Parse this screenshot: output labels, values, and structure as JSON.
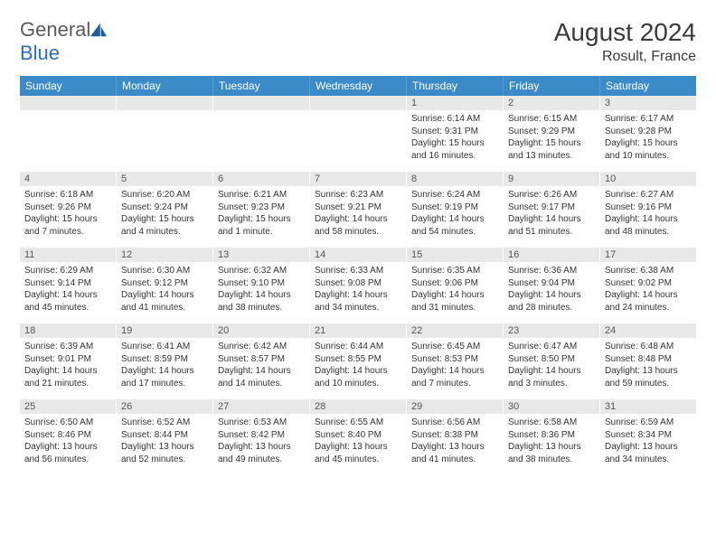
{
  "brand": {
    "name_a": "General",
    "name_b": "Blue",
    "logo_fill": "#1b5f9e"
  },
  "title": {
    "month": "August 2024",
    "location": "Rosult, France"
  },
  "colors": {
    "header_bg": "#3b8bc9",
    "header_text": "#ffffff",
    "daynum_bg": "#e8e8e8",
    "daynum_text": "#555555",
    "body_text": "#333333",
    "page_bg": "#ffffff"
  },
  "dow": [
    "Sunday",
    "Monday",
    "Tuesday",
    "Wednesday",
    "Thursday",
    "Friday",
    "Saturday"
  ],
  "weeks": [
    [
      {
        "n": "",
        "sr": "",
        "ss": "",
        "dl": ""
      },
      {
        "n": "",
        "sr": "",
        "ss": "",
        "dl": ""
      },
      {
        "n": "",
        "sr": "",
        "ss": "",
        "dl": ""
      },
      {
        "n": "",
        "sr": "",
        "ss": "",
        "dl": ""
      },
      {
        "n": "1",
        "sr": "6:14 AM",
        "ss": "9:31 PM",
        "dl": "15 hours and 16 minutes."
      },
      {
        "n": "2",
        "sr": "6:15 AM",
        "ss": "9:29 PM",
        "dl": "15 hours and 13 minutes."
      },
      {
        "n": "3",
        "sr": "6:17 AM",
        "ss": "9:28 PM",
        "dl": "15 hours and 10 minutes."
      }
    ],
    [
      {
        "n": "4",
        "sr": "6:18 AM",
        "ss": "9:26 PM",
        "dl": "15 hours and 7 minutes."
      },
      {
        "n": "5",
        "sr": "6:20 AM",
        "ss": "9:24 PM",
        "dl": "15 hours and 4 minutes."
      },
      {
        "n": "6",
        "sr": "6:21 AM",
        "ss": "9:23 PM",
        "dl": "15 hours and 1 minute."
      },
      {
        "n": "7",
        "sr": "6:23 AM",
        "ss": "9:21 PM",
        "dl": "14 hours and 58 minutes."
      },
      {
        "n": "8",
        "sr": "6:24 AM",
        "ss": "9:19 PM",
        "dl": "14 hours and 54 minutes."
      },
      {
        "n": "9",
        "sr": "6:26 AM",
        "ss": "9:17 PM",
        "dl": "14 hours and 51 minutes."
      },
      {
        "n": "10",
        "sr": "6:27 AM",
        "ss": "9:16 PM",
        "dl": "14 hours and 48 minutes."
      }
    ],
    [
      {
        "n": "11",
        "sr": "6:29 AM",
        "ss": "9:14 PM",
        "dl": "14 hours and 45 minutes."
      },
      {
        "n": "12",
        "sr": "6:30 AM",
        "ss": "9:12 PM",
        "dl": "14 hours and 41 minutes."
      },
      {
        "n": "13",
        "sr": "6:32 AM",
        "ss": "9:10 PM",
        "dl": "14 hours and 38 minutes."
      },
      {
        "n": "14",
        "sr": "6:33 AM",
        "ss": "9:08 PM",
        "dl": "14 hours and 34 minutes."
      },
      {
        "n": "15",
        "sr": "6:35 AM",
        "ss": "9:06 PM",
        "dl": "14 hours and 31 minutes."
      },
      {
        "n": "16",
        "sr": "6:36 AM",
        "ss": "9:04 PM",
        "dl": "14 hours and 28 minutes."
      },
      {
        "n": "17",
        "sr": "6:38 AM",
        "ss": "9:02 PM",
        "dl": "14 hours and 24 minutes."
      }
    ],
    [
      {
        "n": "18",
        "sr": "6:39 AM",
        "ss": "9:01 PM",
        "dl": "14 hours and 21 minutes."
      },
      {
        "n": "19",
        "sr": "6:41 AM",
        "ss": "8:59 PM",
        "dl": "14 hours and 17 minutes."
      },
      {
        "n": "20",
        "sr": "6:42 AM",
        "ss": "8:57 PM",
        "dl": "14 hours and 14 minutes."
      },
      {
        "n": "21",
        "sr": "6:44 AM",
        "ss": "8:55 PM",
        "dl": "14 hours and 10 minutes."
      },
      {
        "n": "22",
        "sr": "6:45 AM",
        "ss": "8:53 PM",
        "dl": "14 hours and 7 minutes."
      },
      {
        "n": "23",
        "sr": "6:47 AM",
        "ss": "8:50 PM",
        "dl": "14 hours and 3 minutes."
      },
      {
        "n": "24",
        "sr": "6:48 AM",
        "ss": "8:48 PM",
        "dl": "13 hours and 59 minutes."
      }
    ],
    [
      {
        "n": "25",
        "sr": "6:50 AM",
        "ss": "8:46 PM",
        "dl": "13 hours and 56 minutes."
      },
      {
        "n": "26",
        "sr": "6:52 AM",
        "ss": "8:44 PM",
        "dl": "13 hours and 52 minutes."
      },
      {
        "n": "27",
        "sr": "6:53 AM",
        "ss": "8:42 PM",
        "dl": "13 hours and 49 minutes."
      },
      {
        "n": "28",
        "sr": "6:55 AM",
        "ss": "8:40 PM",
        "dl": "13 hours and 45 minutes."
      },
      {
        "n": "29",
        "sr": "6:56 AM",
        "ss": "8:38 PM",
        "dl": "13 hours and 41 minutes."
      },
      {
        "n": "30",
        "sr": "6:58 AM",
        "ss": "8:36 PM",
        "dl": "13 hours and 38 minutes."
      },
      {
        "n": "31",
        "sr": "6:59 AM",
        "ss": "8:34 PM",
        "dl": "13 hours and 34 minutes."
      }
    ]
  ],
  "labels": {
    "sunrise": "Sunrise:",
    "sunset": "Sunset:",
    "daylight": "Daylight:"
  }
}
